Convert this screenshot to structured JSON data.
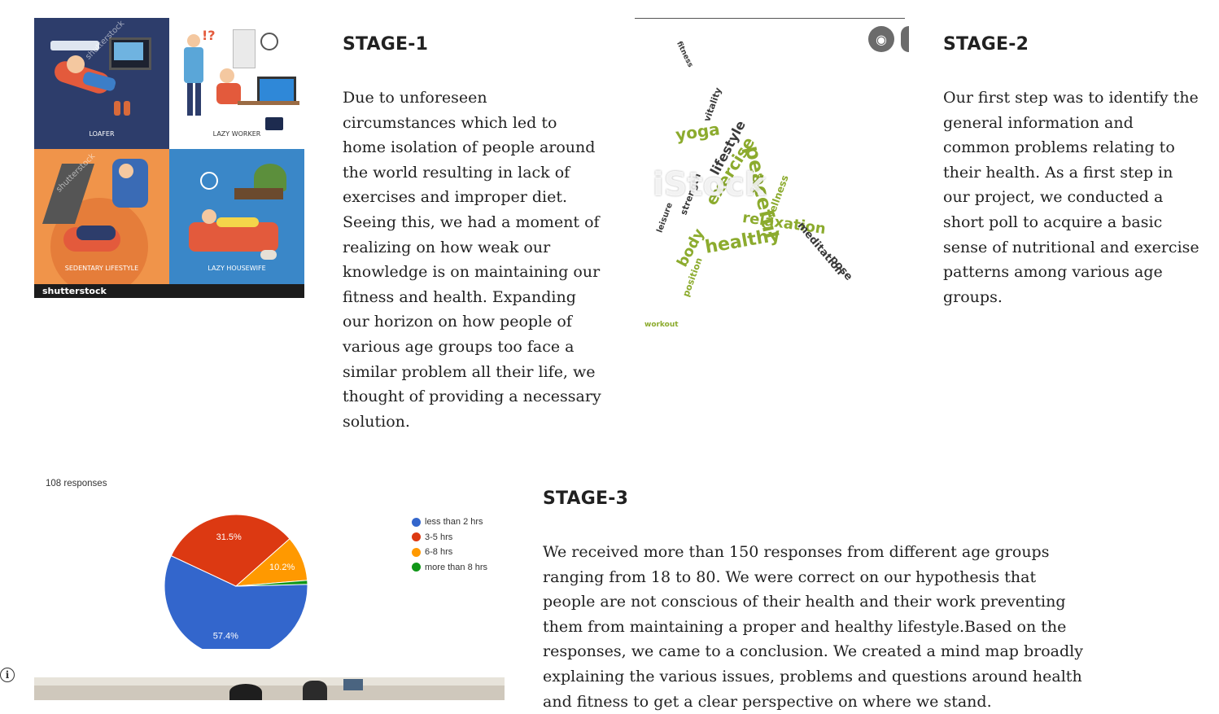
{
  "stage1": {
    "heading": "STAGE-1",
    "body": "Due to unforeseen circumstances which led to home isolation of people around the world resulting in lack of exercises and improper diet. Seeing this, we had a moment of realizing on how weak our knowledge is on maintaining our fitness and health. Expanding our horizon on how people of various age groups too face a similar problem all their life, we thought of providing a necessary solution.",
    "image": {
      "labels": [
        "LOAFER",
        "LAZY WORKER",
        "SEDENTARY LIFESTYLE",
        "LAZY HOUSEWIFE"
      ],
      "watermark": "shutterstock",
      "colors": {
        "navy": "#2d3d6b",
        "white": "#ffffff",
        "orange": "#f0944a",
        "blue": "#3a87c8"
      }
    }
  },
  "stage2": {
    "heading": "STAGE-2",
    "body": "Our first step was to identify the general information and common problems relating to their health. As a first step in our project, we conducted a short poll to acquire a basic sense of nutritional and exercise patterns among various age groups.",
    "image": {
      "watermark": "iStock",
      "words": [
        "yoga",
        "lifestyle",
        "exercise",
        "peaceful",
        "relaxation",
        "healthy",
        "body",
        "meditation",
        "pose",
        "wellness",
        "strength",
        "leisure",
        "position",
        "workout",
        "vitality",
        "care",
        "fitness"
      ],
      "colors": {
        "green": "#8cab2e",
        "dark": "#3a3a3a"
      }
    }
  },
  "stage3": {
    "heading": "STAGE-3",
    "body": "We received more than 150 responses from different age groups ranging from 18 to 80. We were correct on our hypothesis that people are not conscious of their health and their work preventing them from maintaining a proper and healthy lifestyle.Based on the responses, we came to a conclusion. We created a mind map broadly explaining the various  issues, problems and questions around health and fitness to get a clear perspective on where we stand."
  },
  "poll": {
    "caption": "108 responses",
    "chart_data": {
      "type": "pie",
      "categories": [
        "less than 2 hrs",
        "3-5 hrs",
        "6-8 hrs",
        "more than 8 hrs"
      ],
      "values": [
        57.4,
        31.5,
        10.2,
        0.9
      ],
      "data_labels": [
        "57.4%",
        "31.5%",
        "10.2%",
        ""
      ],
      "colors": [
        "#3366cc",
        "#dc3912",
        "#ff9900",
        "#109618"
      ],
      "legend": "right"
    }
  },
  "info_icon": "info-icon"
}
